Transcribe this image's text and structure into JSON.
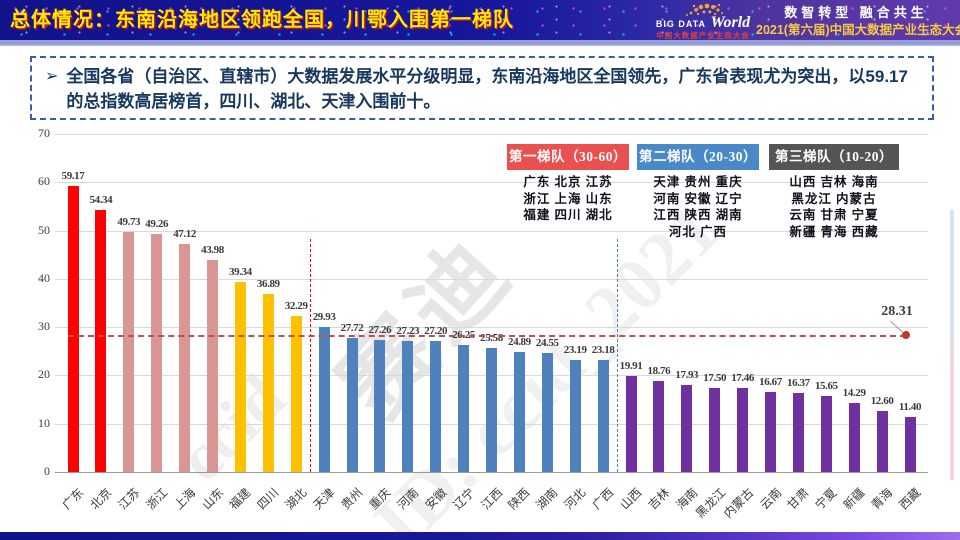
{
  "header": {
    "title": "总体情况：东南沿海地区领跑全国，川鄂入围第一梯队",
    "logo": {
      "big": "BIG DATA",
      "world": "World",
      "sub": "中国大数据产业生态大会"
    },
    "slogan_line1": "数智转型 融合共生",
    "slogan_line2": "2021(第六届)中国大数据产业生态大会"
  },
  "summary": {
    "bullet": "➢",
    "text": "全国各省（自治区、直辖市）大数据发展水平分级明显，东南沿海地区全国领先，广东省表现尤为突出，以59.17的总指数高居榜首，四川、湖北、天津入围前十。"
  },
  "chart_data": {
    "type": "bar",
    "title": "",
    "categories": [
      "广东",
      "北京",
      "江苏",
      "浙江",
      "上海",
      "山东",
      "福建",
      "四川",
      "湖北",
      "天津",
      "贵州",
      "重庆",
      "河南",
      "安徽",
      "辽宁",
      "江西",
      "陕西",
      "湖南",
      "河北",
      "广西",
      "山西",
      "吉林",
      "海南",
      "黑龙江",
      "内蒙古",
      "云南",
      "甘肃",
      "宁夏",
      "新疆",
      "青海",
      "西藏"
    ],
    "values": [
      59.17,
      54.34,
      49.73,
      49.26,
      47.12,
      43.98,
      39.34,
      36.89,
      32.29,
      29.93,
      27.72,
      27.26,
      27.23,
      27.2,
      26.25,
      25.58,
      24.89,
      24.55,
      23.19,
      23.18,
      19.91,
      18.76,
      17.93,
      17.5,
      17.46,
      16.67,
      16.37,
      15.65,
      14.29,
      12.6,
      11.4
    ],
    "ylim": [
      0,
      70
    ],
    "yticks": [
      0,
      10,
      20,
      30,
      40,
      50,
      60,
      70
    ],
    "grid": true,
    "color_groups": [
      {
        "count": 2,
        "color": "#fe0000"
      },
      {
        "count": 4,
        "color": "#d99694"
      },
      {
        "count": 3,
        "color": "#ffc000"
      },
      {
        "count": 11,
        "color": "#4f81bd"
      },
      {
        "count": 11,
        "color": "#7030a0"
      }
    ],
    "separators": [
      {
        "after_index": 8,
        "color": "#ff0000"
      },
      {
        "after_index": 19,
        "color": "#4f81bd"
      }
    ],
    "reference_line": {
      "value": 28.31,
      "label": "28.31",
      "color": "#c0504d"
    }
  },
  "legend": {
    "tiers": [
      {
        "label": "第一梯队（30-60）",
        "color": "#eb5050",
        "rows": [
          "广东 北京 江苏",
          "浙江 上海 山东",
          "福建 四川 湖北"
        ]
      },
      {
        "label": "第二梯队（20-30）",
        "color": "#4a89c8",
        "rows": [
          "天津 贵州 重庆",
          "河南 安徽 辽宁",
          "江西 陕西 湖南",
          "河北 广西",
          ""
        ]
      },
      {
        "label": "第三梯队（10-20）",
        "color": "#555555",
        "rows": [
          "山西 吉林 海南",
          "黑龙江 内蒙古",
          "云南 甘肃 宁夏",
          "新疆 青海 西藏",
          ""
        ]
      }
    ]
  },
  "watermarks": {
    "wm1": "ccid",
    "wm2": "赛迪",
    "wm3": "ID: ccid_2021"
  }
}
